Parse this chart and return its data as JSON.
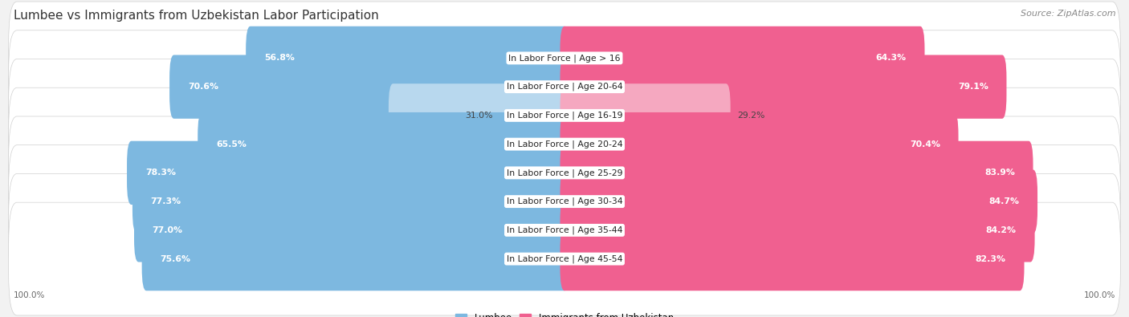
{
  "title": "Lumbee vs Immigrants from Uzbekistan Labor Participation",
  "source": "Source: ZipAtlas.com",
  "categories": [
    "In Labor Force | Age > 16",
    "In Labor Force | Age 20-64",
    "In Labor Force | Age 16-19",
    "In Labor Force | Age 20-24",
    "In Labor Force | Age 25-29",
    "In Labor Force | Age 30-34",
    "In Labor Force | Age 35-44",
    "In Labor Force | Age 45-54"
  ],
  "lumbee_values": [
    56.8,
    70.6,
    31.0,
    65.5,
    78.3,
    77.3,
    77.0,
    75.6
  ],
  "uzbekistan_values": [
    64.3,
    79.1,
    29.2,
    70.4,
    83.9,
    84.7,
    84.2,
    82.3
  ],
  "lumbee_color": "#7db8e0",
  "lumbee_color_light": "#b8d8ee",
  "uzbekistan_color": "#f06090",
  "uzbekistan_color_light": "#f5a8c0",
  "background_color": "#f2f2f2",
  "title_fontsize": 11,
  "label_fontsize": 7.8,
  "value_fontsize": 7.8,
  "legend_fontsize": 8.5,
  "axis_label_fontsize": 7.5,
  "legend_labels": [
    "Lumbee",
    "Immigrants from Uzbekistan"
  ]
}
